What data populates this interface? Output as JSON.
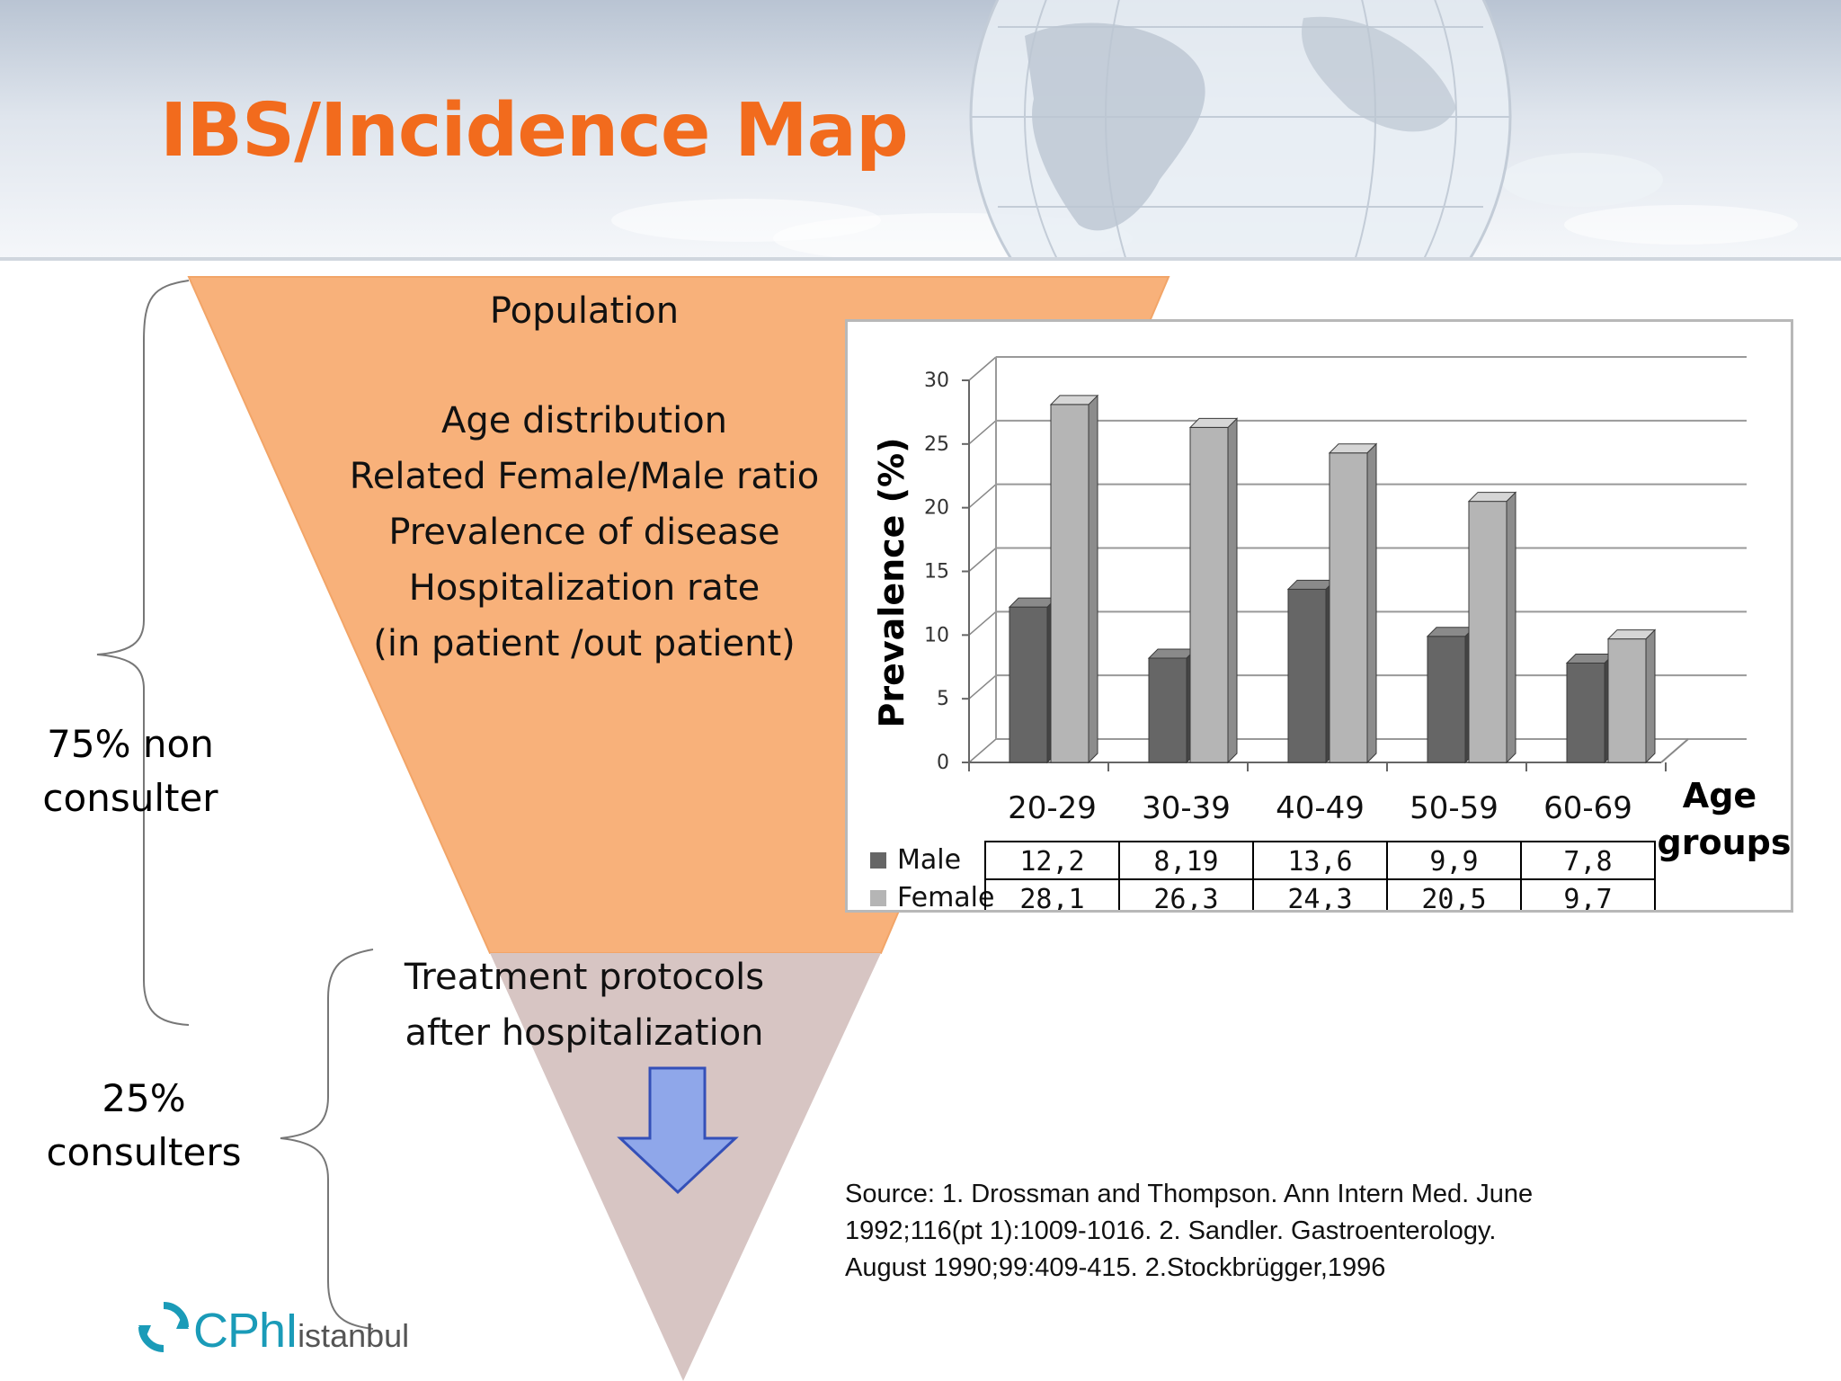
{
  "slide": {
    "title": "IBS/Incidence Map",
    "funnel_top_lines": [
      "Population",
      "",
      "Age distribution",
      "Related Female/Male ratio",
      "Prevalence of disease",
      "Hospitalization rate",
      "(in patient /out patient)"
    ],
    "funnel_bottom_lines": [
      "Treatment protocols",
      "after hospitalization"
    ],
    "left_labels": {
      "non_consulter": [
        "75% non",
        "consulter"
      ],
      "consulters": [
        "25%",
        "consulters"
      ]
    },
    "source_lines": [
      "Source: 1. Drossman and Thompson. Ann Intern Med. June",
      "1992;116(pt 1):1009-1016. 2. Sandler. Gastroenterology.",
      "August 1990;99:409-415.  2.Stockbrügger,1996"
    ],
    "logo": {
      "brand": "CPhI",
      "city": "istanbul"
    },
    "colors": {
      "title": "#f26b1d",
      "funnel_top": "#f8b17a",
      "funnel_bottom": "#d7c5c3",
      "arrow": "#8fa7ea",
      "logo": "#1a9bb8"
    }
  },
  "chart_data": {
    "type": "bar",
    "categories": [
      "20-29",
      "30-39",
      "40-49",
      "50-59",
      "60-69"
    ],
    "series": [
      {
        "name": "Male",
        "values": [
          12.2,
          8.19,
          13.6,
          9.9,
          7.8
        ],
        "labels": [
          "12,2",
          "8,19",
          "13,6",
          "9,9",
          "7,8"
        ],
        "color": "#666666"
      },
      {
        "name": "Female",
        "values": [
          28.1,
          26.3,
          24.3,
          20.5,
          9.7
        ],
        "labels": [
          "28,1",
          "26,3",
          "24,3",
          "20,5",
          "9,7"
        ],
        "color": "#b5b5b5"
      }
    ],
    "ylabel": "Prevalence (%)",
    "xlabel": [
      "Age",
      "groups"
    ],
    "ylim": [
      0,
      30
    ],
    "yticks": [
      "0",
      "5",
      "10",
      "15",
      "20",
      "25",
      "30"
    ],
    "grid": true,
    "data_table": true
  }
}
